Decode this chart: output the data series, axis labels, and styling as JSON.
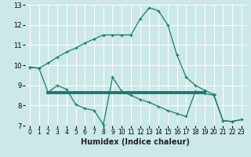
{
  "background_color": "#cce8e8",
  "grid_color": "#ffffff",
  "line_color": "#1a7a6e",
  "xlabel": "Humidex (Indice chaleur)",
  "xlim": [
    -0.5,
    23.5
  ],
  "ylim": [
    7,
    13
  ],
  "yticks": [
    7,
    8,
    9,
    10,
    11,
    12,
    13
  ],
  "x_ticks": [
    0,
    1,
    2,
    3,
    4,
    5,
    6,
    7,
    8,
    9,
    10,
    11,
    12,
    13,
    14,
    15,
    16,
    17,
    18,
    19,
    20,
    21,
    22,
    23
  ],
  "line1_y": [
    9.9,
    9.85,
    10.1,
    10.4,
    10.65,
    10.85,
    11.1,
    11.3,
    11.5,
    11.5,
    11.5,
    11.5,
    12.3,
    12.85,
    12.7,
    12.0,
    10.5,
    9.4,
    9.0,
    8.75,
    8.55,
    7.25,
    7.2,
    7.3
  ],
  "line2_y": [
    9.9,
    9.85,
    8.65,
    9.0,
    8.8,
    8.05,
    7.85,
    7.75,
    7.05,
    9.4,
    8.7,
    8.5,
    8.3,
    8.15,
    7.95,
    7.75,
    7.6,
    7.45,
    8.7,
    8.6,
    8.5,
    7.25,
    7.2,
    7.3
  ],
  "line3_x": [
    2,
    19
  ],
  "line3_y": [
    8.65,
    8.65
  ]
}
